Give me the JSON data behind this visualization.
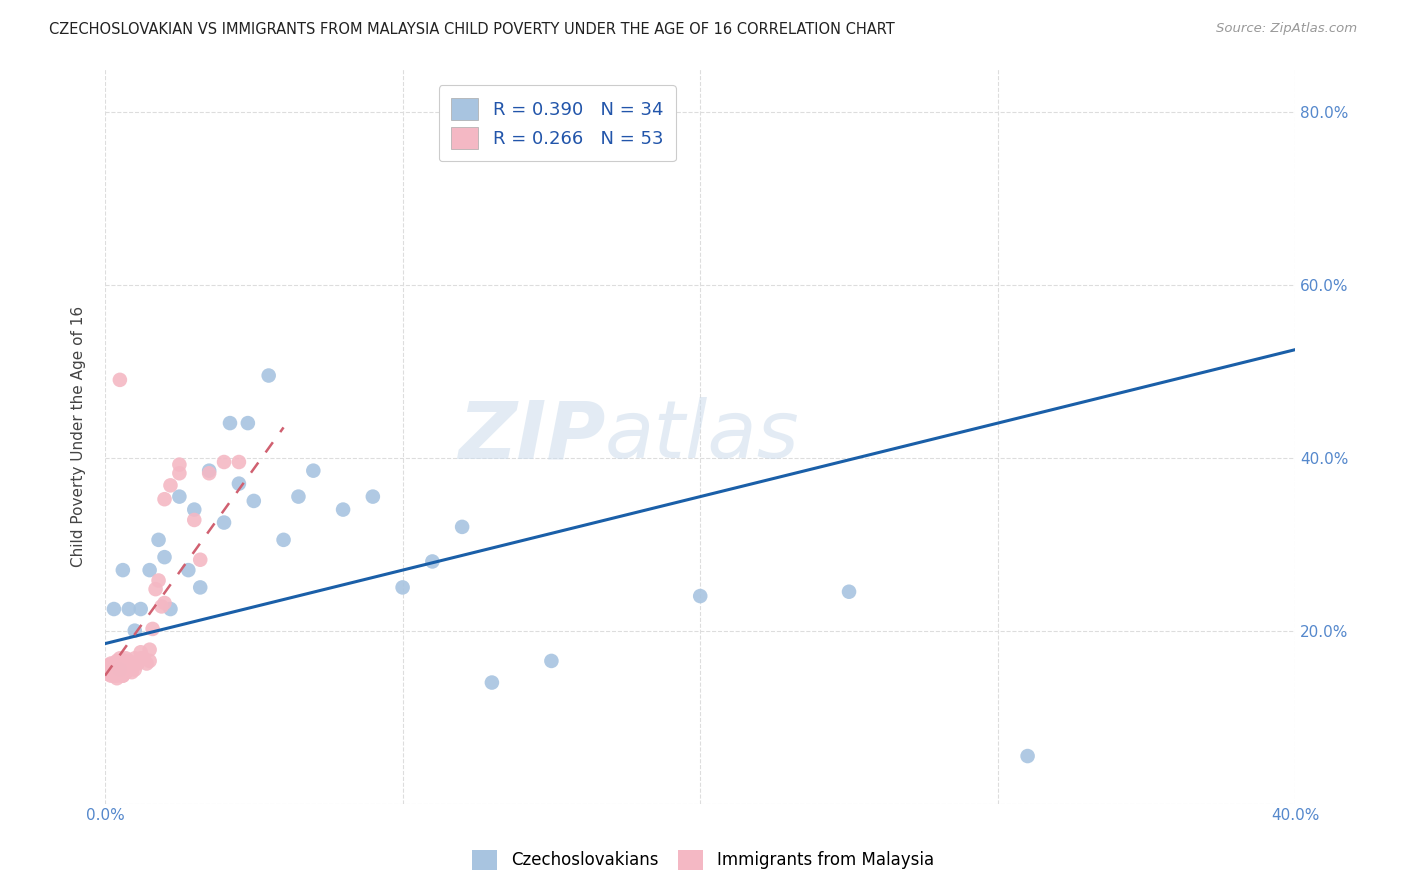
{
  "title": "CZECHOSLOVAKIAN VS IMMIGRANTS FROM MALAYSIA CHILD POVERTY UNDER THE AGE OF 16 CORRELATION CHART",
  "source": "Source: ZipAtlas.com",
  "ylabel": "Child Poverty Under the Age of 16",
  "xlim": [
    0.0,
    0.4
  ],
  "ylim": [
    0.0,
    0.85
  ],
  "xticks": [
    0.0,
    0.1,
    0.2,
    0.3,
    0.4
  ],
  "xtick_labels": [
    "0.0%",
    "",
    "",
    "",
    "40.0%"
  ],
  "yticks": [
    0.0,
    0.2,
    0.4,
    0.6,
    0.8
  ],
  "ytick_labels_right": [
    "",
    "20.0%",
    "40.0%",
    "60.0%",
    "80.0%"
  ],
  "grid_color": "#dddddd",
  "background_color": "#ffffff",
  "blue_color": "#a8c4e0",
  "pink_color": "#f4b8c4",
  "blue_line_color": "#1a5fa8",
  "pink_line_color": "#d06070",
  "watermark_zip": "ZIP",
  "watermark_atlas": "atlas",
  "legend_blue_R": "R = 0.390",
  "legend_blue_N": "N = 34",
  "legend_pink_R": "R = 0.266",
  "legend_pink_N": "N = 53",
  "blue_scatter_x": [
    0.003,
    0.005,
    0.006,
    0.008,
    0.01,
    0.012,
    0.015,
    0.018,
    0.02,
    0.022,
    0.025,
    0.028,
    0.03,
    0.032,
    0.035,
    0.04,
    0.042,
    0.045,
    0.048,
    0.05,
    0.055,
    0.06,
    0.065,
    0.07,
    0.08,
    0.09,
    0.1,
    0.11,
    0.12,
    0.13,
    0.15,
    0.2,
    0.25,
    0.31
  ],
  "blue_scatter_y": [
    0.225,
    0.155,
    0.27,
    0.225,
    0.2,
    0.225,
    0.27,
    0.305,
    0.285,
    0.225,
    0.355,
    0.27,
    0.34,
    0.25,
    0.385,
    0.325,
    0.44,
    0.37,
    0.44,
    0.35,
    0.495,
    0.305,
    0.355,
    0.385,
    0.34,
    0.355,
    0.25,
    0.28,
    0.32,
    0.14,
    0.165,
    0.24,
    0.245,
    0.055
  ],
  "pink_scatter_x": [
    0.001,
    0.001,
    0.002,
    0.002,
    0.002,
    0.003,
    0.003,
    0.003,
    0.004,
    0.004,
    0.004,
    0.005,
    0.005,
    0.005,
    0.006,
    0.006,
    0.006,
    0.007,
    0.007,
    0.007,
    0.008,
    0.008,
    0.009,
    0.009,
    0.01,
    0.01,
    0.011,
    0.012,
    0.013,
    0.014,
    0.015,
    0.016,
    0.017,
    0.018,
    0.019,
    0.02,
    0.02,
    0.022,
    0.025,
    0.025,
    0.03,
    0.032,
    0.035,
    0.04,
    0.045,
    0.004,
    0.005,
    0.006,
    0.007,
    0.008,
    0.01,
    0.012,
    0.015
  ],
  "pink_scatter_y": [
    0.15,
    0.16,
    0.148,
    0.155,
    0.162,
    0.148,
    0.155,
    0.162,
    0.148,
    0.158,
    0.165,
    0.15,
    0.16,
    0.168,
    0.148,
    0.158,
    0.165,
    0.152,
    0.16,
    0.168,
    0.155,
    0.165,
    0.152,
    0.162,
    0.155,
    0.168,
    0.162,
    0.175,
    0.168,
    0.162,
    0.178,
    0.202,
    0.248,
    0.258,
    0.228,
    0.232,
    0.352,
    0.368,
    0.382,
    0.392,
    0.328,
    0.282,
    0.382,
    0.395,
    0.395,
    0.145,
    0.49,
    0.148,
    0.152,
    0.158,
    0.162,
    0.168,
    0.165
  ],
  "blue_line_x": [
    0.0,
    0.4
  ],
  "blue_line_y": [
    0.185,
    0.525
  ],
  "pink_line_x": [
    0.0,
    0.06
  ],
  "pink_line_y": [
    0.148,
    0.435
  ]
}
